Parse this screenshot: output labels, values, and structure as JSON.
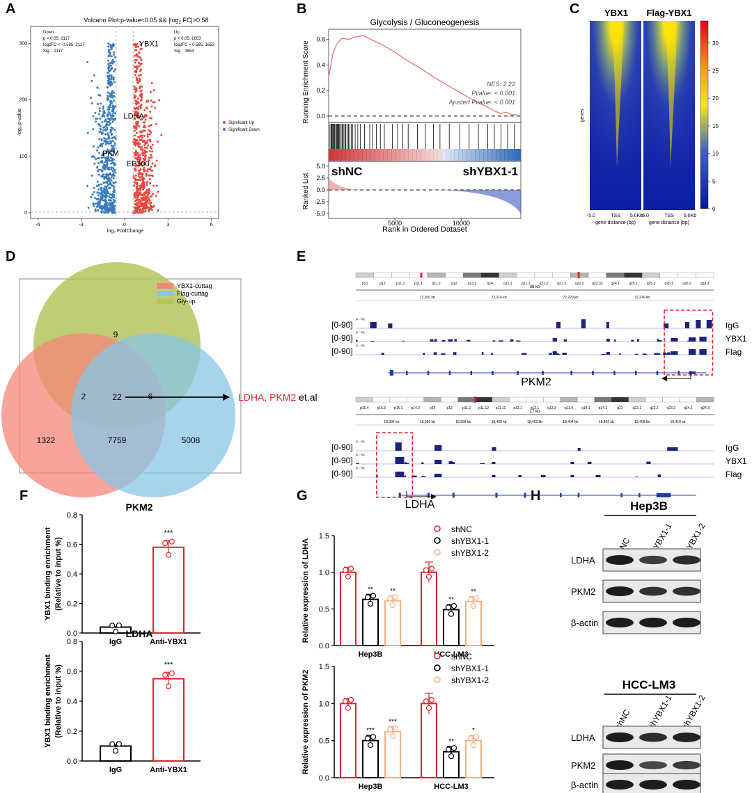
{
  "panels": {
    "A": "A",
    "B": "B",
    "C": "C",
    "D": "D",
    "E": "E",
    "F": "F",
    "G": "G",
    "H": "H"
  },
  "colors": {
    "red": "#e8463c",
    "blue": "#3a7bbd",
    "gsea_line": "#e97c73",
    "bar_red": "#e3242b",
    "bar_black": "#000000",
    "bar_orange": "#f4b183",
    "venn_red": "#f4857a",
    "venn_blue": "#88c6e6",
    "venn_green": "#b6c45c",
    "track_blue": "#1a237e"
  },
  "volcano": {
    "title": "Volcano Plot:p-value<0.05 && |log",
    "title_sub": "2",
    "title_end": " FC|>0.58",
    "down_lines": [
      "Down",
      "p < 0.05: 2117",
      "log2FC < -0.585: 2117",
      "Sig. : 2117"
    ],
    "up_lines": [
      "Up",
      "p < 0.05: 1653",
      "log2FC > 0.585: 1653",
      "Sig. : 1653"
    ],
    "ylabel": "-log₁₀p-value",
    "xlabel": "log₂ FoldChange",
    "legend_up": "Significant Up",
    "legend_down": "Significant Down",
    "genes": [
      "YBX1",
      "LDHA",
      "PKM",
      "EP300"
    ],
    "chart_data": {
      "type": "scatter",
      "xlim": [
        -6.5,
        6.5
      ],
      "ylim": [
        0,
        320
      ],
      "xticks": [
        -6,
        -3,
        0,
        3,
        6
      ],
      "yticks": [
        0,
        100,
        200,
        300
      ],
      "series": [
        {
          "name": "Significant Up"
        },
        {
          "name": "Significant Down"
        }
      ],
      "labels": [
        {
          "text": "YBX1",
          "x": 0.9,
          "y": 300
        },
        {
          "text": "LDHA",
          "x": 0.6,
          "y": 172
        },
        {
          "text": "PKM",
          "x": 0.0,
          "y": 118
        },
        {
          "text": "EP300",
          "x": 0.8,
          "y": 90
        }
      ]
    }
  },
  "gsea": {
    "title": "Glycolysis / Gluconeogenesis",
    "ylabel_top": "Running Enrichment Score",
    "ylabel_bottom": "Ranked List",
    "xlabel": "Rank in Ordered Dataset",
    "nes": "NES: 2.22",
    "pvalue": "Pvalue: < 0.001",
    "adj": "Ajusted Pvalue: < 0.001",
    "left_group": "shNC",
    "right_group": "shYBX1-1",
    "chart_data": {
      "type": "line",
      "xlim": [
        0,
        14500
      ],
      "ylim": [
        -0.05,
        0.68
      ],
      "xticks": [
        5000,
        10000
      ],
      "yticks": [
        0.0,
        0.2,
        0.4,
        0.6
      ],
      "ranked_yticks": [
        5.0,
        2.5,
        0.0,
        -2.5,
        -5.0
      ],
      "x": [
        0,
        300,
        600,
        1000,
        1500,
        2000,
        2600,
        3200,
        4000,
        5000,
        6000,
        7000,
        8000,
        9000,
        10000,
        11000,
        12000,
        12500,
        13000,
        13400,
        13800,
        14200
      ],
      "y": [
        0.3,
        0.48,
        0.56,
        0.61,
        0.6,
        0.62,
        0.63,
        0.6,
        0.56,
        0.5,
        0.43,
        0.37,
        0.3,
        0.24,
        0.18,
        0.12,
        0.07,
        0.04,
        0.02,
        0.03,
        0.01,
        0.01
      ]
    }
  },
  "heatmap": {
    "col1": "YBX1",
    "col2": "Flag-YBX1",
    "ylabel": "genes",
    "xticks": [
      "-5.0",
      "TSS",
      "5.0Kb"
    ],
    "xlabel": "gene distance (bp)",
    "chart_data": {
      "type": "heatmap",
      "colorbar_ticks": [
        0,
        5,
        10,
        15,
        20,
        25,
        30
      ],
      "colorbar_range": [
        0,
        34
      ]
    }
  },
  "venn": {
    "legend": [
      "YBX1-cuttag",
      "Flag-cuttag",
      "Gly-up"
    ],
    "counts": {
      "gly_only": "9",
      "ybx1_gly": "2",
      "flag_gly": "6",
      "all": "22",
      "ybx1_only": "1322",
      "ybx1_flag": "7759",
      "flag_only": "5008"
    },
    "callout_genes": "LDHA, PKM2",
    "callout_suffix": " et.al"
  },
  "tracks": {
    "pkm2": {
      "ideogram": [
        "p13",
        "p12",
        "p11.2",
        "p11.1",
        "q11.2",
        "q12",
        "q13.2",
        "q14",
        "q15.1",
        "q21.1",
        "q21.2",
        "q21.3",
        "q22.2",
        "q22.32",
        "q24.1",
        "q25.1",
        "q25.3",
        "q26.1",
        "q26.2",
        "q26.3"
      ],
      "scale": "38 kb",
      "coords": [
        "72,200 kb",
        "72,210 kb",
        "72,220 kb",
        "72,230 kb"
      ],
      "ranges": [
        "[0-90]",
        "[0-90]",
        "[0-90]"
      ],
      "small_ranges": [
        "[0 - 90]",
        "[0 - 90]",
        "[0 - 90]"
      ],
      "track_names": [
        "IgG",
        "YBX1",
        "Flag"
      ],
      "gene": "PKM2"
    },
    "ldha": {
      "ideogram": [
        "p15.4",
        "p15.3",
        "p15.1",
        "p14.2",
        "p13",
        "p12",
        "p11.2",
        "p11.12",
        "p11.11",
        "q12.1",
        "q13.1",
        "q13.3",
        "q13.4",
        "q14.1",
        "q14.2",
        "q21",
        "q22.1",
        "q22.2",
        "q23.2",
        "q24.1",
        "q24.3"
      ],
      "scale": "17 kb",
      "coords": [
        "18,394 kb",
        "18,396 kb",
        "18,398 kb",
        "18,400 kb",
        "18,402 kb",
        "18,404 kb",
        "18,406 kb",
        "18,408 kb",
        "18,410 kb"
      ],
      "ranges": [
        "[0-90]",
        "[0-90]",
        "[0-90]"
      ],
      "small_ranges": [
        "[0 - 90]",
        "[0 - 90]",
        "[0 - 90]"
      ],
      "track_names": [
        "IgG",
        "YBX1",
        "Flag"
      ],
      "gene": "LDHA"
    }
  },
  "panelF": {
    "ylabel1": "YBX1 binding enrichment",
    "ylabel2": "(Relative to input %)",
    "charts": [
      {
        "title": "PKM2",
        "categories": [
          "IgG",
          "Anti-YBX1"
        ],
        "values": [
          0.04,
          0.58
        ],
        "sig": "***",
        "ylim": [
          0,
          0.8
        ],
        "yticks": [
          "0.0",
          "0.2",
          "0.4",
          "0.6",
          "0.8"
        ]
      },
      {
        "title": "LDHA",
        "categories": [
          "IgG",
          "Anti-YBX1"
        ],
        "values": [
          0.1,
          0.55
        ],
        "sig": "***",
        "ylim": [
          0,
          0.8
        ],
        "yticks": [
          "0.0",
          "0.2",
          "0.4",
          "0.6",
          "0.8"
        ]
      }
    ]
  },
  "panelG": {
    "legend": [
      "shNC",
      "shYBX1-1",
      "shYBX1-2"
    ],
    "charts": [
      {
        "ylabel": "Relative expression of LDHA",
        "categories": [
          "Hep3B",
          "HCC-LM3"
        ],
        "values": [
          [
            1.0,
            0.63,
            0.61
          ],
          [
            1.0,
            0.49,
            0.6
          ]
        ],
        "sig": [
          [
            "",
            "**",
            "**"
          ],
          [
            "",
            "**",
            "**"
          ]
        ],
        "ylim": [
          0,
          1.5
        ],
        "yticks": [
          "0.0",
          "0.5",
          "1.0",
          "1.5"
        ]
      },
      {
        "ylabel": "Relative expression of PKM2",
        "categories": [
          "Hep3B",
          "HCC-LM3"
        ],
        "values": [
          [
            1.0,
            0.5,
            0.62
          ],
          [
            1.0,
            0.35,
            0.5
          ]
        ],
        "sig": [
          [
            "",
            "***",
            "***"
          ],
          [
            "",
            "**",
            "*"
          ]
        ],
        "ylim": [
          0,
          1.5
        ],
        "yticks": [
          "0.0",
          "0.5",
          "1.0",
          "1.5"
        ]
      }
    ]
  },
  "panelH": {
    "blocks": [
      {
        "cell": "Hep3B",
        "lanes": [
          "shNC",
          "shYBX1-1",
          "shYBX1-2"
        ],
        "rows": [
          "LDHA",
          "PKM2",
          "β-actin"
        ]
      },
      {
        "cell": "HCC-LM3",
        "lanes": [
          "shNC",
          "shYBX1-1",
          "shYBX1-2"
        ],
        "rows": [
          "LDHA",
          "PKM2",
          "β-actin"
        ]
      }
    ]
  }
}
